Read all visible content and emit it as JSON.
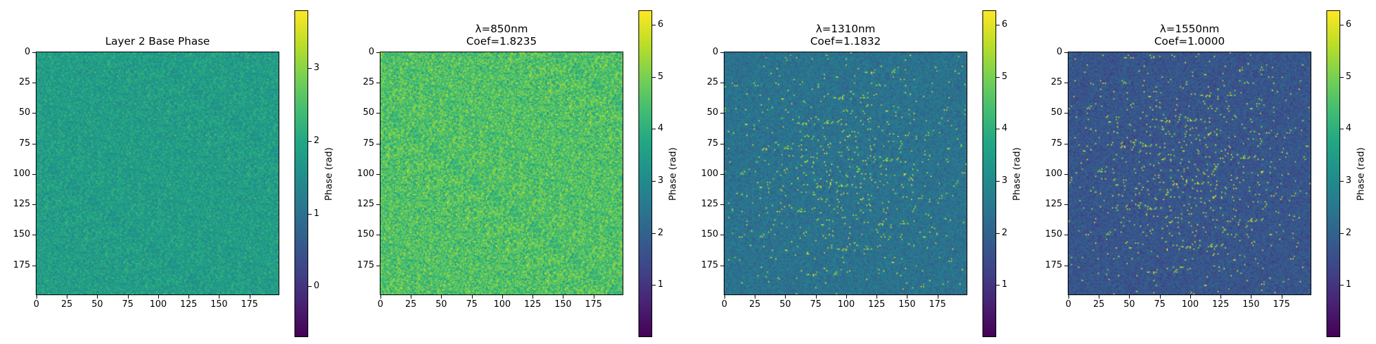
{
  "chart_data": [
    {
      "type": "heatmap",
      "title": "Layer 2 Base Phase",
      "colormap": "viridis",
      "grid_size": [
        200,
        200
      ],
      "xlim": [
        0,
        199
      ],
      "ylim": [
        199,
        0
      ],
      "xticks": [
        "0",
        "25",
        "50",
        "75",
        "100",
        "125",
        "150",
        "175"
      ],
      "yticks": [
        "0",
        "25",
        "50",
        "75",
        "100",
        "125",
        "150",
        "175"
      ],
      "colorbar": {
        "label": "Phase (rad)",
        "range": [
          -0.7,
          3.8
        ],
        "ticks": [
          "0",
          "1",
          "2",
          "3"
        ]
      },
      "value_distribution": "random phase, concentrated around 1.8–2.2 rad"
    },
    {
      "type": "heatmap",
      "title": "λ=850nm\nCoef=1.8235",
      "colormap": "viridis",
      "grid_size": [
        200,
        200
      ],
      "xlim": [
        0,
        199
      ],
      "ylim": [
        199,
        0
      ],
      "xticks": [
        "0",
        "25",
        "50",
        "75",
        "100",
        "125",
        "150",
        "175"
      ],
      "yticks": [
        "0",
        "25",
        "50",
        "75",
        "100",
        "125",
        "150",
        "175"
      ],
      "colorbar": {
        "label": "Phase (rad)",
        "range": [
          0,
          6.28
        ],
        "ticks": [
          "1",
          "2",
          "3",
          "4",
          "5",
          "6"
        ]
      },
      "value_distribution": "broad random phase, mostly 3–6 rad"
    },
    {
      "type": "heatmap",
      "title": "λ=1310nm\nCoef=1.1832",
      "colormap": "viridis",
      "grid_size": [
        200,
        200
      ],
      "xlim": [
        0,
        199
      ],
      "ylim": [
        199,
        0
      ],
      "xticks": [
        "0",
        "25",
        "50",
        "75",
        "100",
        "125",
        "150",
        "175"
      ],
      "yticks": [
        "0",
        "25",
        "50",
        "75",
        "100",
        "125",
        "150",
        "175"
      ],
      "colorbar": {
        "label": "Phase (rad)",
        "range": [
          0,
          6.28
        ],
        "ticks": [
          "1",
          "2",
          "3",
          "4",
          "5",
          "6"
        ]
      },
      "value_distribution": "mostly 1.5–3.5 rad with sparse bright peaks near center"
    },
    {
      "type": "heatmap",
      "title": "λ=1550nm\nCoef=1.0000",
      "colormap": "viridis",
      "grid_size": [
        200,
        200
      ],
      "xlim": [
        0,
        199
      ],
      "ylim": [
        199,
        0
      ],
      "xticks": [
        "0",
        "25",
        "50",
        "75",
        "100",
        "125",
        "150",
        "175"
      ],
      "yticks": [
        "0",
        "25",
        "50",
        "75",
        "100",
        "125",
        "150",
        "175"
      ],
      "colorbar": {
        "label": "Phase (rad)",
        "range": [
          0,
          6.28
        ],
        "ticks": [
          "1",
          "2",
          "3",
          "4",
          "5",
          "6"
        ]
      },
      "value_distribution": "mostly 1–3 rad with sparse bright peaks near center"
    }
  ]
}
